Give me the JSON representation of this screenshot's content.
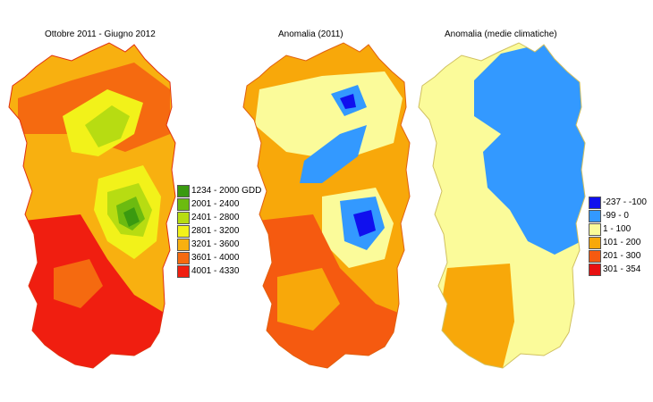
{
  "maps": [
    {
      "id": "gdd",
      "title": "Ottobre 2011 - Giugno 2012",
      "legend": [
        {
          "label": "1234 - 2000 GDD",
          "color": "#3a9a10"
        },
        {
          "label": "2001 - 2400",
          "color": "#6cbb10"
        },
        {
          "label": "2401 - 2800",
          "color": "#b7dc12"
        },
        {
          "label": "2801 - 3200",
          "color": "#f2f21a"
        },
        {
          "label": "3201 - 3600",
          "color": "#f8b010"
        },
        {
          "label": "3601 - 4000",
          "color": "#f56a10"
        },
        {
          "label": "4001 - 4330",
          "color": "#f01e10"
        }
      ]
    },
    {
      "id": "anomaly-2011",
      "title": "Anomalia (2011)",
      "legend": []
    },
    {
      "id": "anomaly-climatic",
      "title": "Anomalia (medie climatiche)",
      "legend": [
        {
          "label": "-237 - -100",
          "color": "#1010ee"
        },
        {
          "label": "-99 - 0",
          "color": "#3399ff"
        },
        {
          "label": "1 - 100",
          "color": "#fbfb9a"
        },
        {
          "label": "101 - 200",
          "color": "#f8a80a"
        },
        {
          "label": "201 - 300",
          "color": "#f55a10"
        },
        {
          "label": "301 - 354",
          "color": "#e81010"
        }
      ]
    }
  ]
}
